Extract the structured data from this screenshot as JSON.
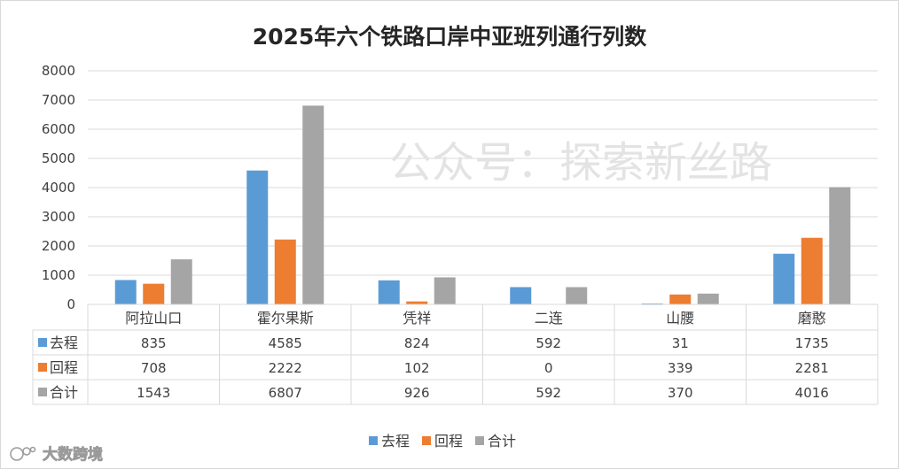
{
  "chart_data": {
    "type": "bar",
    "title": "2025年六个铁路口岸中亚班列通行列数",
    "categories": [
      "阿拉山口",
      "霍尔果斯",
      "凭祥",
      "二连",
      "山腰",
      "磨憨"
    ],
    "series": [
      {
        "name": "去程",
        "color": "#5b9bd5",
        "values": [
          835,
          4585,
          824,
          592,
          31,
          1735
        ]
      },
      {
        "name": "回程",
        "color": "#ed7d31",
        "values": [
          708,
          2222,
          102,
          0,
          339,
          2281
        ]
      },
      {
        "name": "合计",
        "color": "#a5a5a5",
        "values": [
          1543,
          6807,
          926,
          592,
          370,
          4016
        ]
      }
    ],
    "ylim": [
      0,
      8000
    ],
    "yticks": [
      0,
      1000,
      2000,
      3000,
      4000,
      5000,
      6000,
      7000,
      8000
    ],
    "xlabel": "",
    "ylabel": "",
    "grid": true,
    "legend": "bottom",
    "data_table": true
  },
  "watermark": "公众号：探索新丝路",
  "logo_text": "大数跨境"
}
